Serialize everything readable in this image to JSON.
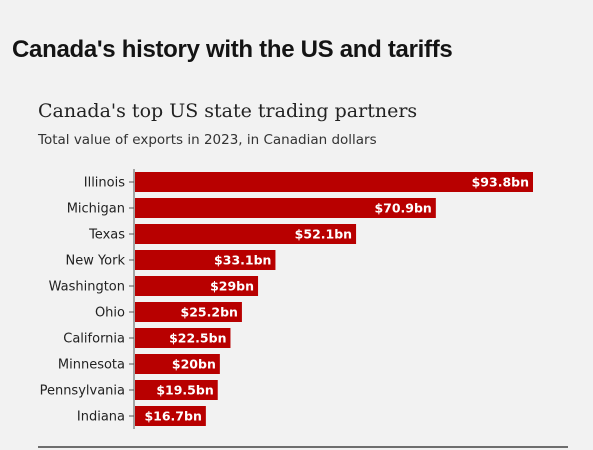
{
  "headline": "Canada's history with the US and tariffs",
  "colors": {
    "bar": "#b80000",
    "background": "#f2f2f2",
    "axis": "#555555"
  },
  "chart_data": {
    "type": "bar",
    "orientation": "horizontal",
    "title": "Canada's top US state trading partners",
    "subtitle": "Total value of exports in 2023, in Canadian dollars",
    "categories": [
      "Illinois",
      "Michigan",
      "Texas",
      "New York",
      "Washington",
      "Ohio",
      "California",
      "Minnesota",
      "Pennsylvania",
      "Indiana"
    ],
    "values": [
      93.8,
      70.9,
      52.1,
      33.1,
      29,
      25.2,
      22.5,
      20,
      19.5,
      16.7
    ],
    "value_labels": [
      "$93.8bn",
      "$70.9bn",
      "$52.1bn",
      "$33.1bn",
      "$29bn",
      "$25.2bn",
      "$22.5bn",
      "$20bn",
      "$19.5bn",
      "$16.7bn"
    ],
    "unit": "C$ billions",
    "xlim": [
      0,
      93.8
    ],
    "grid": false,
    "legend": "none"
  }
}
